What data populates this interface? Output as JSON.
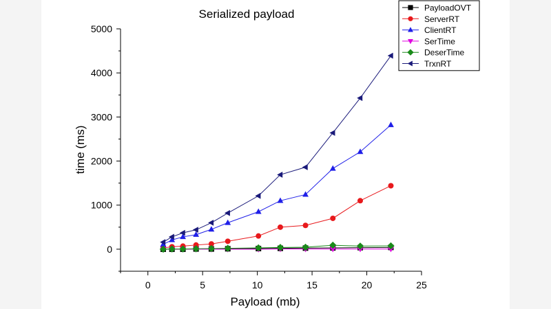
{
  "chart_data": {
    "type": "line",
    "title": "Serialized payload",
    "xlabel": "Payload (mb)",
    "ylabel": "time (ms)",
    "xlim": [
      -2.5,
      25
    ],
    "ylim": [
      -500,
      5000
    ],
    "xticks": [
      0,
      5,
      10,
      15,
      20,
      25
    ],
    "yticks": [
      0,
      1000,
      2000,
      3000,
      4000,
      5000
    ],
    "grid": false,
    "legend_position": "top-right",
    "x": [
      1.4,
      2.2,
      3.2,
      4.4,
      5.8,
      7.3,
      10.1,
      12.1,
      14.4,
      16.9,
      19.4,
      22.2
    ],
    "series": [
      {
        "name": "PayloadOVT",
        "color": "#000000",
        "marker": "square",
        "values": [
          0,
          0,
          0,
          5,
          5,
          10,
          15,
          20,
          25,
          30,
          35,
          40
        ]
      },
      {
        "name": "ServerRT",
        "color": "#e8191c",
        "marker": "circle",
        "values": [
          30,
          55,
          70,
          95,
          120,
          180,
          300,
          500,
          540,
          700,
          1100,
          1440
        ]
      },
      {
        "name": "ClientRT",
        "color": "#1f1fe8",
        "marker": "triangle-up",
        "values": [
          110,
          210,
          280,
          330,
          450,
          600,
          850,
          1100,
          1240,
          1830,
          2210,
          2820
        ]
      },
      {
        "name": "SerTime",
        "color": "#e000e0",
        "marker": "triangle-down",
        "values": [
          0,
          0,
          0,
          0,
          0,
          0,
          0,
          5,
          5,
          5,
          5,
          5
        ]
      },
      {
        "name": "DeserTime",
        "color": "#1a8a1a",
        "marker": "diamond",
        "values": [
          0,
          5,
          5,
          10,
          15,
          20,
          30,
          40,
          45,
          90,
          70,
          75
        ]
      },
      {
        "name": "TrxnRT",
        "color": "#1a1a7a",
        "marker": "triangle-left",
        "values": [
          160,
          280,
          370,
          440,
          600,
          820,
          1210,
          1690,
          1860,
          2640,
          3430,
          4390
        ]
      }
    ]
  }
}
